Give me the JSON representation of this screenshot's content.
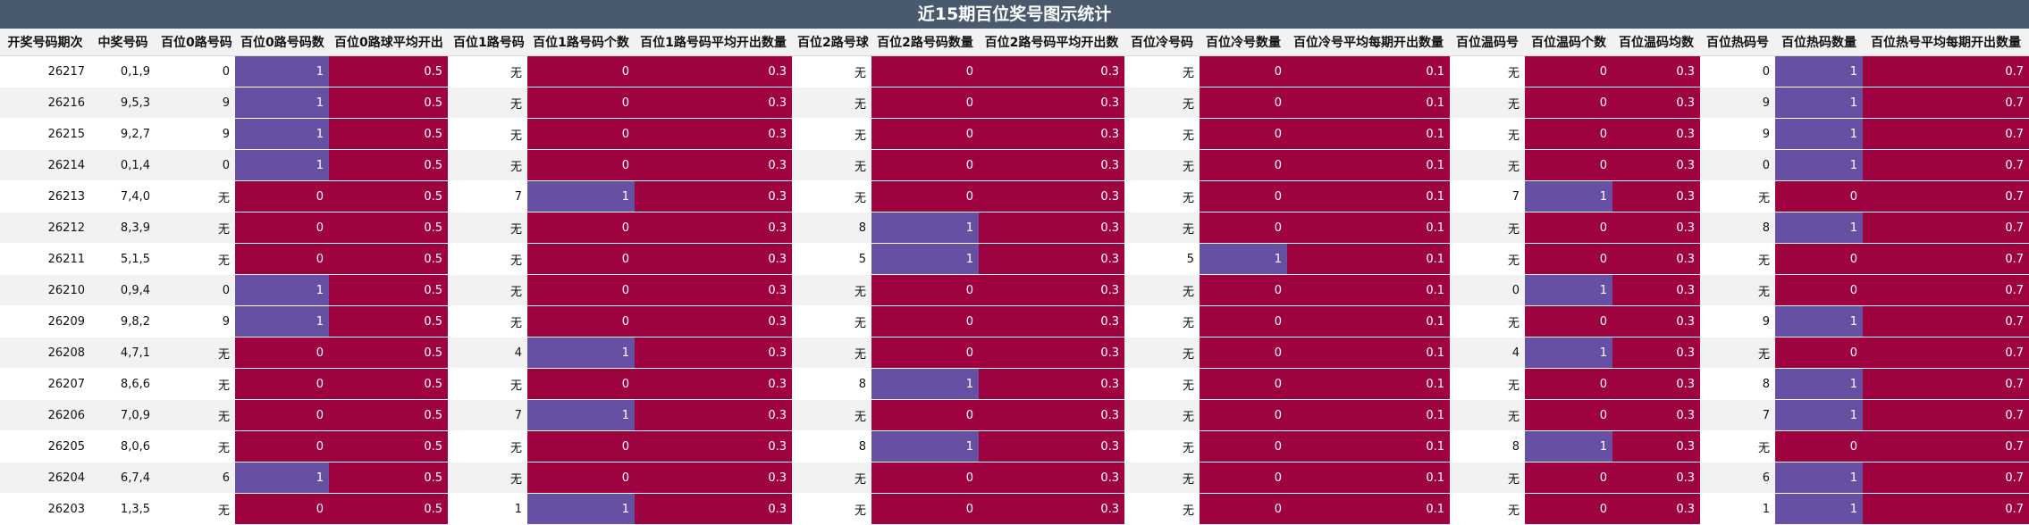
{
  "title": "近15期百位奖号图示统计",
  "colors": {
    "header_bg": "#495a6e",
    "red": "#9f0240",
    "purple": "#6750a4",
    "row_alt": "#f2f2f2"
  },
  "columns": [
    "开奖号码期次",
    "中奖号码",
    "百位0路号码",
    "百位0路号码数",
    "百位0路球平均开出",
    "百位1路号码",
    "百位1路号码个数",
    "百位1路号码平均开出数量",
    "百位2路号球",
    "百位2路号码数量",
    "百位2路号码平均开出数",
    "百位冷号码",
    "百位冷号数量",
    "百位冷号平均每期开出数量",
    "百位温码号",
    "百位温码个数",
    "百位温码均数",
    "百位热码号",
    "百位热码数量",
    "百位热号平均每期开出数量"
  ],
  "rows": [
    [
      "26217",
      "0,1,9",
      "0",
      "1",
      "0.5",
      "无",
      "0",
      "0.3",
      "无",
      "0",
      "0.3",
      "无",
      "0",
      "0.1",
      "无",
      "0",
      "0.3",
      "0",
      "1",
      "0.7"
    ],
    [
      "26216",
      "9,5,3",
      "9",
      "1",
      "0.5",
      "无",
      "0",
      "0.3",
      "无",
      "0",
      "0.3",
      "无",
      "0",
      "0.1",
      "无",
      "0",
      "0.3",
      "9",
      "1",
      "0.7"
    ],
    [
      "26215",
      "9,2,7",
      "9",
      "1",
      "0.5",
      "无",
      "0",
      "0.3",
      "无",
      "0",
      "0.3",
      "无",
      "0",
      "0.1",
      "无",
      "0",
      "0.3",
      "9",
      "1",
      "0.7"
    ],
    [
      "26214",
      "0,1,4",
      "0",
      "1",
      "0.5",
      "无",
      "0",
      "0.3",
      "无",
      "0",
      "0.3",
      "无",
      "0",
      "0.1",
      "无",
      "0",
      "0.3",
      "0",
      "1",
      "0.7"
    ],
    [
      "26213",
      "7,4,0",
      "无",
      "0",
      "0.5",
      "7",
      "1",
      "0.3",
      "无",
      "0",
      "0.3",
      "无",
      "0",
      "0.1",
      "7",
      "1",
      "0.3",
      "无",
      "0",
      "0.7"
    ],
    [
      "26212",
      "8,3,9",
      "无",
      "0",
      "0.5",
      "无",
      "0",
      "0.3",
      "8",
      "1",
      "0.3",
      "无",
      "0",
      "0.1",
      "无",
      "0",
      "0.3",
      "8",
      "1",
      "0.7"
    ],
    [
      "26211",
      "5,1,5",
      "无",
      "0",
      "0.5",
      "无",
      "0",
      "0.3",
      "5",
      "1",
      "0.3",
      "5",
      "1",
      "0.1",
      "无",
      "0",
      "0.3",
      "无",
      "0",
      "0.7"
    ],
    [
      "26210",
      "0,9,4",
      "0",
      "1",
      "0.5",
      "无",
      "0",
      "0.3",
      "无",
      "0",
      "0.3",
      "无",
      "0",
      "0.1",
      "0",
      "1",
      "0.3",
      "无",
      "0",
      "0.7"
    ],
    [
      "26209",
      "9,8,2",
      "9",
      "1",
      "0.5",
      "无",
      "0",
      "0.3",
      "无",
      "0",
      "0.3",
      "无",
      "0",
      "0.1",
      "无",
      "0",
      "0.3",
      "9",
      "1",
      "0.7"
    ],
    [
      "26208",
      "4,7,1",
      "无",
      "0",
      "0.5",
      "4",
      "1",
      "0.3",
      "无",
      "0",
      "0.3",
      "无",
      "0",
      "0.1",
      "4",
      "1",
      "0.3",
      "无",
      "0",
      "0.7"
    ],
    [
      "26207",
      "8,6,6",
      "无",
      "0",
      "0.5",
      "无",
      "0",
      "0.3",
      "8",
      "1",
      "0.3",
      "无",
      "0",
      "0.1",
      "无",
      "0",
      "0.3",
      "8",
      "1",
      "0.7"
    ],
    [
      "26206",
      "7,0,9",
      "无",
      "0",
      "0.5",
      "7",
      "1",
      "0.3",
      "无",
      "0",
      "0.3",
      "无",
      "0",
      "0.1",
      "无",
      "0",
      "0.3",
      "7",
      "1",
      "0.7"
    ],
    [
      "26205",
      "8,0,6",
      "无",
      "0",
      "0.5",
      "无",
      "0",
      "0.3",
      "8",
      "1",
      "0.3",
      "无",
      "0",
      "0.1",
      "8",
      "1",
      "0.3",
      "无",
      "0",
      "0.7"
    ],
    [
      "26204",
      "6,7,4",
      "6",
      "1",
      "0.5",
      "无",
      "0",
      "0.3",
      "无",
      "0",
      "0.3",
      "无",
      "0",
      "0.1",
      "无",
      "0",
      "0.3",
      "6",
      "1",
      "0.7"
    ],
    [
      "26203",
      "1,3,5",
      "无",
      "0",
      "0.5",
      "1",
      "1",
      "0.3",
      "无",
      "0",
      "0.3",
      "无",
      "0",
      "0.1",
      "无",
      "0",
      "0.3",
      "1",
      "1",
      "0.7"
    ]
  ]
}
